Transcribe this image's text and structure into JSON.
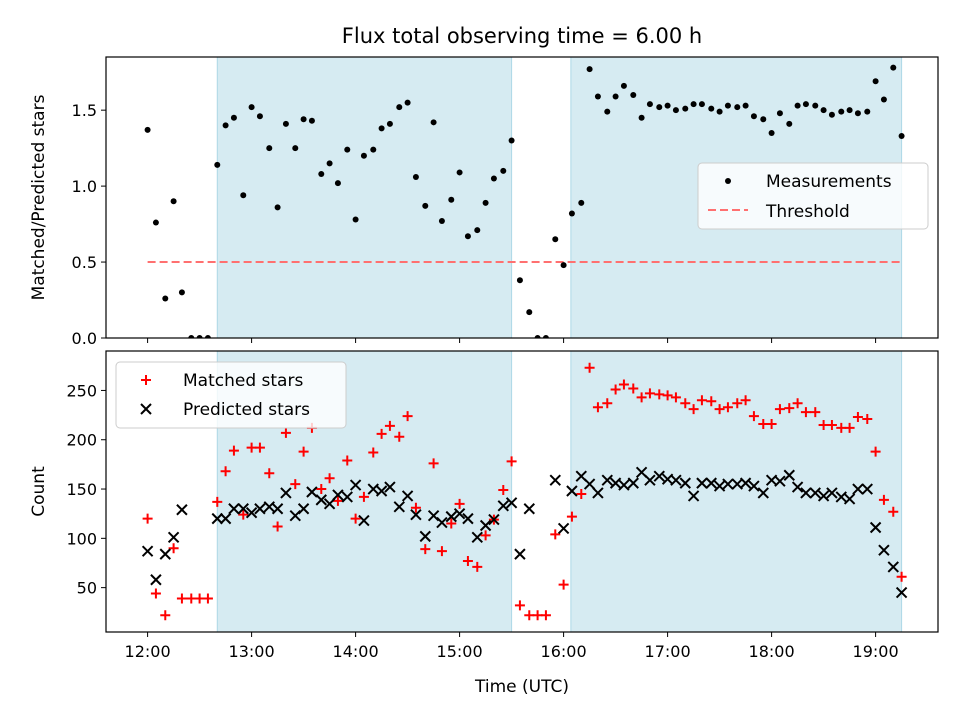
{
  "title": "Flux total observing time = 6.00 h",
  "colors": {
    "measurement": "#000000",
    "threshold": "#ff7070",
    "matched": "#ff0000",
    "predicted": "#000000",
    "shade": "#add8e6"
  },
  "chart_data": [
    {
      "type": "scatter",
      "panel": "top",
      "ylabel": "Matched/Predicted stars",
      "xlim": [
        11.6,
        19.6
      ],
      "ylim": [
        0,
        1.85
      ],
      "yticks": [
        0.0,
        0.5,
        1.0,
        1.5
      ],
      "yticklabels": [
        "0.0",
        "0.5",
        "1.0",
        "1.5"
      ],
      "legend": {
        "placement": "center-right",
        "entries": [
          "Measurements",
          "Threshold"
        ]
      },
      "shaded_regions": [
        [
          12.67,
          15.5
        ],
        [
          16.07,
          19.25
        ]
      ],
      "threshold": {
        "name": "Threshold",
        "y": 0.5,
        "x": [
          12.0,
          19.25
        ]
      },
      "series": [
        {
          "name": "Measurements",
          "x": [
            12.0,
            12.08,
            12.17,
            12.25,
            12.33,
            12.42,
            12.5,
            12.58,
            12.67,
            12.75,
            12.83,
            12.92,
            13.0,
            13.08,
            13.17,
            13.25,
            13.33,
            13.42,
            13.5,
            13.58,
            13.67,
            13.75,
            13.83,
            13.92,
            14.0,
            14.08,
            14.17,
            14.25,
            14.33,
            14.42,
            14.5,
            14.58,
            14.67,
            14.75,
            14.83,
            14.92,
            15.0,
            15.08,
            15.17,
            15.25,
            15.33,
            15.42,
            15.5,
            15.58,
            15.67,
            15.75,
            15.83,
            15.92,
            16.0,
            16.08,
            16.17,
            16.25,
            16.33,
            16.42,
            16.5,
            16.58,
            16.67,
            16.75,
            16.83,
            16.92,
            17.0,
            17.08,
            17.17,
            17.25,
            17.33,
            17.42,
            17.5,
            17.58,
            17.67,
            17.75,
            17.83,
            17.92,
            18.0,
            18.08,
            18.17,
            18.25,
            18.33,
            18.42,
            18.5,
            18.58,
            18.67,
            18.75,
            18.83,
            18.92,
            19.0,
            19.08,
            19.17,
            19.25
          ],
          "y": [
            1.37,
            0.76,
            0.26,
            0.9,
            0.3,
            0.0,
            0.0,
            0.0,
            1.14,
            1.4,
            1.45,
            0.94,
            1.52,
            1.46,
            1.25,
            0.86,
            1.41,
            1.25,
            1.44,
            1.43,
            1.08,
            1.15,
            1.02,
            1.24,
            0.78,
            1.2,
            1.24,
            1.38,
            1.41,
            1.52,
            1.55,
            1.06,
            0.87,
            1.42,
            0.77,
            0.91,
            1.09,
            0.67,
            0.71,
            0.89,
            1.05,
            1.1,
            1.3,
            0.38,
            0.17,
            0.0,
            0.0,
            0.65,
            0.48,
            0.82,
            0.89,
            1.77,
            1.59,
            1.49,
            1.59,
            1.66,
            1.6,
            1.45,
            1.54,
            1.52,
            1.53,
            1.5,
            1.51,
            1.54,
            1.54,
            1.51,
            1.49,
            1.53,
            1.52,
            1.53,
            1.46,
            1.44,
            1.35,
            1.48,
            1.41,
            1.53,
            1.54,
            1.53,
            1.5,
            1.47,
            1.49,
            1.5,
            1.48,
            1.49,
            1.69,
            1.57,
            1.78,
            1.33
          ]
        }
      ]
    },
    {
      "type": "scatter",
      "panel": "bottom",
      "xlabel": "Time (UTC)",
      "ylabel": "Count",
      "xlim": [
        11.6,
        19.6
      ],
      "ylim": [
        5,
        290
      ],
      "xticks": [
        12,
        13,
        14,
        15,
        16,
        17,
        18,
        19
      ],
      "xticklabels": [
        "12:00",
        "13:00",
        "14:00",
        "15:00",
        "16:00",
        "17:00",
        "18:00",
        "19:00"
      ],
      "yticks": [
        50,
        100,
        150,
        200,
        250
      ],
      "yticklabels": [
        "50",
        "100",
        "150",
        "200",
        "250"
      ],
      "legend": {
        "placement": "upper-left",
        "entries": [
          "Matched stars",
          "Predicted stars"
        ]
      },
      "shaded_regions": [
        [
          12.67,
          15.5
        ],
        [
          16.07,
          19.25
        ]
      ],
      "series": [
        {
          "name": "Matched stars",
          "marker": "plus",
          "x": [
            12.0,
            12.08,
            12.17,
            12.25,
            12.33,
            12.42,
            12.5,
            12.58,
            12.67,
            12.75,
            12.83,
            12.92,
            13.0,
            13.08,
            13.17,
            13.25,
            13.33,
            13.42,
            13.5,
            13.58,
            13.67,
            13.75,
            13.83,
            13.92,
            14.0,
            14.08,
            14.17,
            14.25,
            14.33,
            14.42,
            14.5,
            14.58,
            14.67,
            14.75,
            14.83,
            14.92,
            15.0,
            15.08,
            15.17,
            15.25,
            15.33,
            15.42,
            15.5,
            15.58,
            15.67,
            15.75,
            15.83,
            15.92,
            16.0,
            16.08,
            16.17,
            16.25,
            16.33,
            16.42,
            16.5,
            16.58,
            16.67,
            16.75,
            16.83,
            16.92,
            17.0,
            17.08,
            17.17,
            17.25,
            17.33,
            17.42,
            17.5,
            17.58,
            17.67,
            17.75,
            17.83,
            17.92,
            18.0,
            18.08,
            18.17,
            18.25,
            18.33,
            18.42,
            18.5,
            18.58,
            18.67,
            18.75,
            18.83,
            18.92,
            19.0,
            19.08,
            19.17,
            19.25
          ],
          "y": [
            120,
            44,
            22,
            90,
            39,
            39,
            39,
            39,
            137,
            168,
            189,
            124,
            192,
            192,
            166,
            112,
            207,
            155,
            188,
            212,
            150,
            161,
            138,
            179,
            120,
            142,
            187,
            206,
            214,
            203,
            224,
            131,
            89,
            176,
            87,
            115,
            135,
            77,
            71,
            103,
            119,
            149,
            178,
            32,
            22,
            22,
            22,
            104,
            53,
            122,
            145,
            273,
            233,
            237,
            251,
            256,
            252,
            243,
            247,
            246,
            245,
            243,
            237,
            231,
            240,
            239,
            231,
            233,
            237,
            240,
            224,
            216,
            216,
            231,
            232,
            237,
            228,
            228,
            215,
            215,
            212,
            212,
            223,
            221,
            188,
            139,
            127,
            61
          ]
        },
        {
          "name": "Predicted stars",
          "marker": "x",
          "x": [
            12.0,
            12.08,
            12.17,
            12.25,
            12.33,
            12.67,
            12.75,
            12.83,
            12.92,
            13.0,
            13.08,
            13.17,
            13.25,
            13.33,
            13.42,
            13.5,
            13.58,
            13.67,
            13.75,
            13.83,
            13.92,
            14.0,
            14.08,
            14.17,
            14.25,
            14.33,
            14.42,
            14.5,
            14.58,
            14.67,
            14.75,
            14.83,
            14.92,
            15.0,
            15.08,
            15.17,
            15.25,
            15.33,
            15.42,
            15.5,
            15.58,
            15.67,
            15.92,
            16.0,
            16.08,
            16.17,
            16.25,
            16.33,
            16.42,
            16.5,
            16.58,
            16.67,
            16.75,
            16.83,
            16.92,
            17.0,
            17.08,
            17.17,
            17.25,
            17.33,
            17.42,
            17.5,
            17.58,
            17.67,
            17.75,
            17.83,
            17.92,
            18.0,
            18.08,
            18.17,
            18.25,
            18.33,
            18.42,
            18.5,
            18.58,
            18.67,
            18.75,
            18.83,
            18.92,
            19.0,
            19.08,
            19.17,
            19.25
          ],
          "y": [
            87,
            58,
            84,
            101,
            129,
            120,
            120,
            130,
            130,
            126,
            130,
            132,
            130,
            146,
            123,
            130,
            147,
            139,
            135,
            144,
            142,
            154,
            118,
            150,
            148,
            152,
            132,
            143,
            124,
            102,
            123,
            116,
            122,
            125,
            120,
            101,
            113,
            119,
            133,
            136,
            84,
            130,
            159,
            110,
            148,
            163,
            155,
            146,
            159,
            156,
            154,
            156,
            167,
            159,
            163,
            160,
            159,
            156,
            143,
            156,
            156,
            153,
            155,
            155,
            156,
            153,
            146,
            159,
            158,
            164,
            152,
            146,
            146,
            143,
            146,
            142,
            140,
            150,
            150,
            111,
            88,
            71,
            45
          ]
        }
      ]
    }
  ]
}
